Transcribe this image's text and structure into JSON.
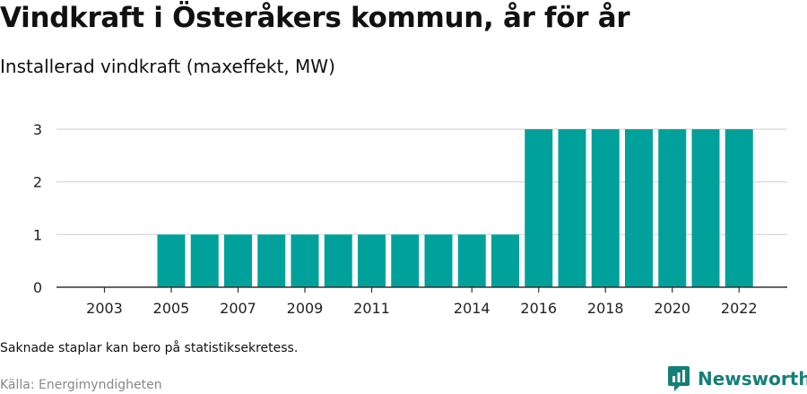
{
  "title": "Vindkraft i Österåkers kommun, år för år",
  "subtitle": "Installerad vindkraft (maxeffekt, MW)",
  "note": "Saknade staplar kan bero på statistiksekretess.",
  "source": "Källa: Energimyndigheten",
  "brand": {
    "name": "Newsworthy",
    "icon": "newsworthy-logo-icon",
    "color": "#157f78"
  },
  "colors": {
    "bar": "#00a19a",
    "grid": "#dddddd",
    "axis": "#333333"
  },
  "chart_data": {
    "type": "bar",
    "categories": [
      "2003",
      "2004",
      "2005",
      "2006",
      "2007",
      "2008",
      "2009",
      "2010",
      "2011",
      "2012",
      "2013",
      "2014",
      "2015",
      "2016",
      "2017",
      "2018",
      "2019",
      "2020",
      "2021",
      "2022"
    ],
    "values": [
      null,
      null,
      1,
      1,
      1,
      1,
      1,
      1,
      1,
      1,
      1,
      1,
      1,
      3,
      3,
      3,
      3,
      3,
      3,
      3
    ],
    "x_tick_labels": [
      "2003",
      "2005",
      "2007",
      "2009",
      "2011",
      "2014",
      "2016",
      "2018",
      "2020",
      "2022"
    ],
    "y_ticks": [
      0,
      1,
      2,
      3
    ],
    "ylim": [
      0,
      3
    ],
    "grid": true,
    "xlabel": "",
    "ylabel": ""
  }
}
